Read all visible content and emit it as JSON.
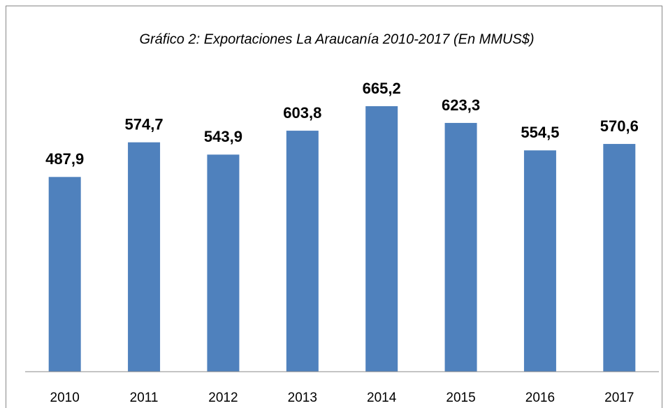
{
  "chart_data": {
    "type": "bar",
    "title": "Gráfico 2: Exportaciones La Araucanía 2010-2017 (En MMUS$)",
    "categories": [
      "2010",
      "2011",
      "2012",
      "2013",
      "2014",
      "2015",
      "2016",
      "2017"
    ],
    "values": [
      487.9,
      574.7,
      543.9,
      603.8,
      665.2,
      623.3,
      554.5,
      570.6
    ],
    "value_labels": [
      "487,9",
      "574,7",
      "543,9",
      "603,8",
      "665,2",
      "623,3",
      "554,5",
      "570,6"
    ],
    "color": "#4f81bd",
    "ylim": [
      0,
      800
    ]
  }
}
